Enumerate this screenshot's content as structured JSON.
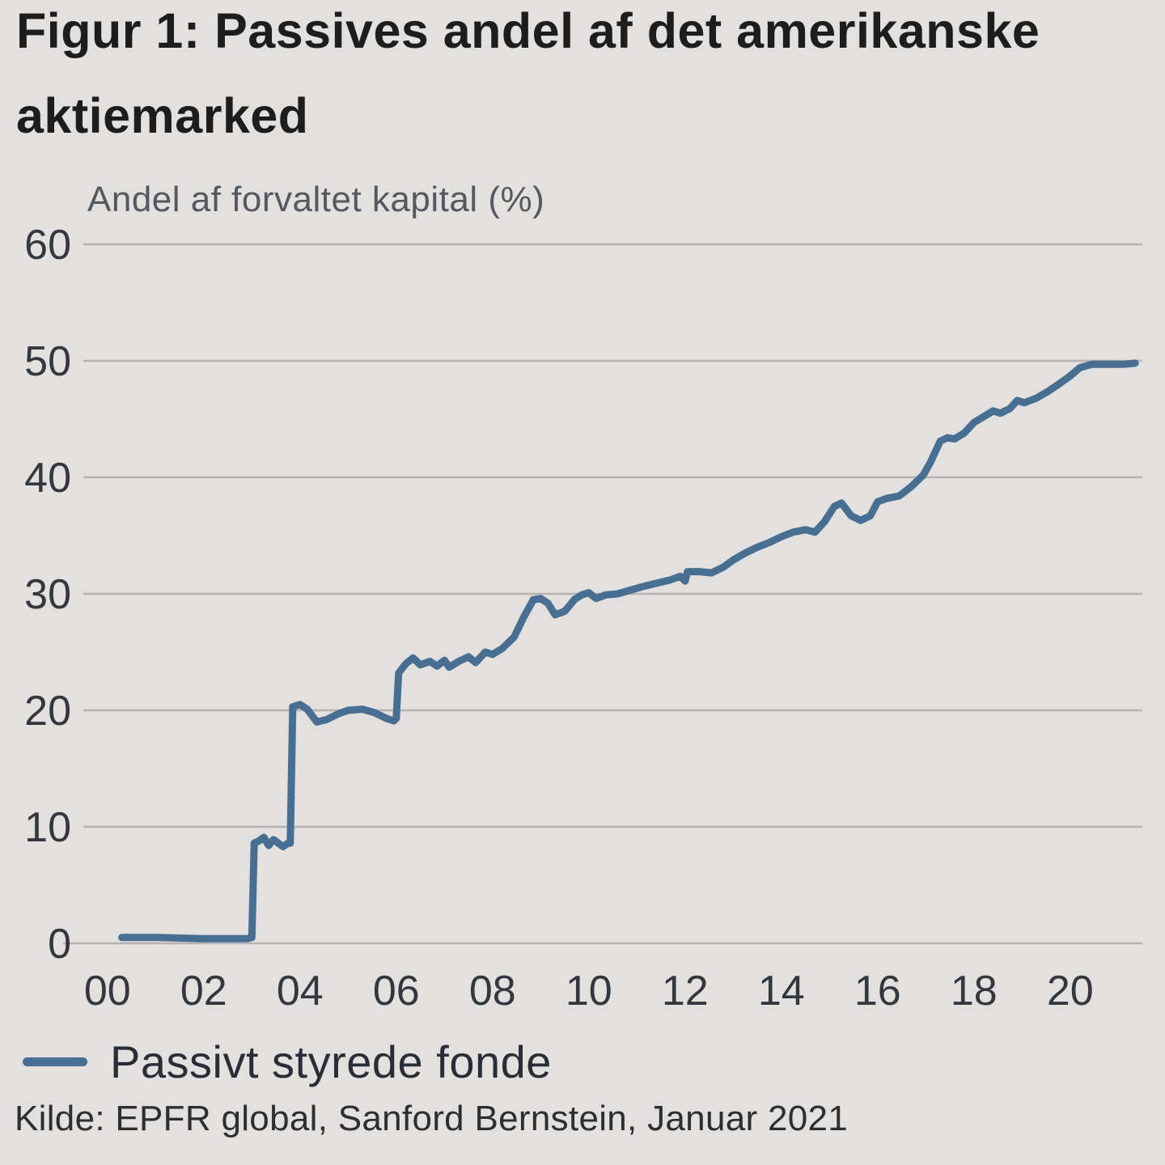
{
  "figure": {
    "title": "Figur 1: Passives andel af det amerikanske aktiemarked",
    "source": "Kilde: EPFR global, Sanford Bernstein, Januar 2021"
  },
  "legend": {
    "label": "Passivt styrede fonde"
  },
  "colors": {
    "background": "#e2e1df",
    "line": "#486f92",
    "gridline": "#b5b4b2",
    "title_text": "#1d1d1e",
    "subtitle_text": "#55585f",
    "tick_text": "#34373e"
  },
  "chart_data": {
    "type": "line",
    "title": "Figur 1: Passives andel af det amerikanske aktiemarked",
    "ylabel": "Andel af forvaltet kapital (%)",
    "xlabel": "",
    "grid": "horizontal",
    "legend_position": "bottom-left",
    "xlim": [
      1999.5,
      2021.5
    ],
    "ylim": [
      0,
      60
    ],
    "yticks": [
      0,
      10,
      20,
      30,
      40,
      50,
      60
    ],
    "xticks": [
      {
        "value": 2000,
        "label": "00"
      },
      {
        "value": 2002,
        "label": "02"
      },
      {
        "value": 2004,
        "label": "04"
      },
      {
        "value": 2006,
        "label": "06"
      },
      {
        "value": 2008,
        "label": "08"
      },
      {
        "value": 2010,
        "label": "10"
      },
      {
        "value": 2012,
        "label": "12"
      },
      {
        "value": 2014,
        "label": "14"
      },
      {
        "value": 2016,
        "label": "16"
      },
      {
        "value": 2018,
        "label": "18"
      },
      {
        "value": 2020,
        "label": "20"
      }
    ],
    "series": [
      {
        "name": "Passivt styrede fonde",
        "color": "#486f92",
        "x": [
          2000.3,
          2001.0,
          2002.0,
          2002.9,
          2003.0,
          2003.05,
          2003.15,
          2003.25,
          2003.35,
          2003.45,
          2003.55,
          2003.65,
          2003.75,
          2003.8,
          2003.85,
          2004.0,
          2004.15,
          2004.35,
          2004.55,
          2004.8,
          2005.0,
          2005.3,
          2005.55,
          2005.8,
          2005.95,
          2006.0,
          2006.05,
          2006.2,
          2006.35,
          2006.5,
          2006.7,
          2006.85,
          2007.0,
          2007.1,
          2007.3,
          2007.5,
          2007.65,
          2007.85,
          2008.0,
          2008.2,
          2008.45,
          2008.65,
          2008.85,
          2009.0,
          2009.15,
          2009.3,
          2009.5,
          2009.7,
          2009.85,
          2010.0,
          2010.15,
          2010.35,
          2010.6,
          2010.85,
          2011.1,
          2011.4,
          2011.7,
          2011.9,
          2012.0,
          2012.05,
          2012.3,
          2012.55,
          2012.8,
          2013.0,
          2013.25,
          2013.5,
          2013.75,
          2014.0,
          2014.25,
          2014.5,
          2014.7,
          2014.9,
          2015.1,
          2015.25,
          2015.45,
          2015.65,
          2015.85,
          2016.0,
          2016.2,
          2016.45,
          2016.7,
          2016.95,
          2017.1,
          2017.3,
          2017.45,
          2017.6,
          2017.8,
          2018.0,
          2018.2,
          2018.4,
          2018.55,
          2018.75,
          2018.9,
          2019.05,
          2019.3,
          2019.55,
          2019.8,
          2020.0,
          2020.2,
          2020.45,
          2020.8,
          2021.1,
          2021.35
        ],
        "y": [
          0.5,
          0.5,
          0.4,
          0.4,
          0.5,
          8.6,
          8.8,
          9.1,
          8.4,
          8.9,
          8.6,
          8.3,
          8.6,
          8.6,
          20.3,
          20.5,
          20.1,
          19.0,
          19.2,
          19.7,
          20.0,
          20.1,
          19.8,
          19.3,
          19.1,
          19.3,
          23.2,
          24.0,
          24.5,
          23.9,
          24.2,
          23.8,
          24.3,
          23.7,
          24.2,
          24.6,
          24.1,
          25.0,
          24.8,
          25.3,
          26.3,
          28.0,
          29.5,
          29.6,
          29.2,
          28.2,
          28.5,
          29.5,
          29.9,
          30.1,
          29.6,
          29.9,
          30.0,
          30.3,
          30.6,
          30.9,
          31.2,
          31.5,
          31.1,
          31.9,
          31.9,
          31.8,
          32.3,
          32.9,
          33.5,
          34.0,
          34.4,
          34.9,
          35.3,
          35.5,
          35.3,
          36.2,
          37.5,
          37.8,
          36.7,
          36.3,
          36.7,
          37.9,
          38.2,
          38.4,
          39.2,
          40.2,
          41.3,
          43.1,
          43.4,
          43.3,
          43.8,
          44.7,
          45.2,
          45.7,
          45.5,
          45.9,
          46.6,
          46.4,
          46.8,
          47.4,
          48.1,
          48.7,
          49.4,
          49.7,
          49.7,
          49.7,
          49.8
        ]
      }
    ]
  }
}
